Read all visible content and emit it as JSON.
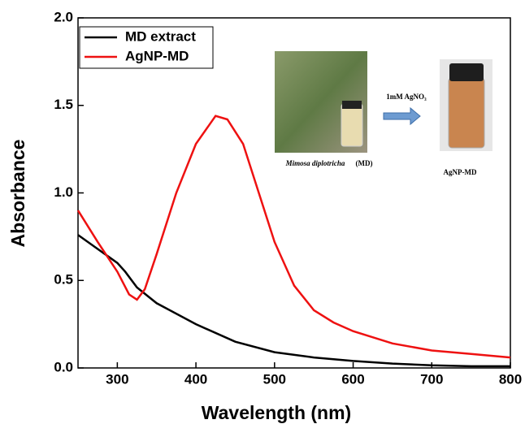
{
  "chart_data": {
    "type": "line",
    "xlabel": "Wavelength (nm)",
    "ylabel": "Absorbance",
    "xlim": [
      250,
      800
    ],
    "ylim": [
      0,
      2
    ],
    "xticks": [
      300,
      400,
      500,
      600,
      700,
      800
    ],
    "yticks": [
      {
        "value": 0,
        "label": "0.0"
      },
      {
        "value": 0.5,
        "label": "0.5"
      },
      {
        "value": 1,
        "label": "1.0"
      },
      {
        "value": 1.5,
        "label": "1.5"
      },
      {
        "value": 2,
        "label": "2.0"
      }
    ],
    "legend": "upper left",
    "series": [
      {
        "name": "MD extract",
        "color": "#000000",
        "x": [
          250,
          275,
          300,
          310,
          325,
          350,
          400,
          450,
          500,
          550,
          600,
          650,
          700,
          750,
          800
        ],
        "values": [
          0.76,
          0.68,
          0.6,
          0.55,
          0.46,
          0.37,
          0.25,
          0.15,
          0.09,
          0.06,
          0.04,
          0.025,
          0.015,
          0.01,
          0.01
        ]
      },
      {
        "name": "AgNP-MD",
        "color": "#ee1111",
        "x": [
          250,
          275,
          300,
          315,
          325,
          335,
          350,
          375,
          400,
          425,
          440,
          460,
          480,
          500,
          525,
          550,
          575,
          600,
          650,
          700,
          750,
          800
        ],
        "values": [
          0.9,
          0.72,
          0.55,
          0.42,
          0.39,
          0.45,
          0.65,
          1.0,
          1.28,
          1.44,
          1.42,
          1.28,
          1.0,
          0.72,
          0.47,
          0.33,
          0.26,
          0.21,
          0.14,
          0.1,
          0.08,
          0.06
        ]
      }
    ],
    "annotations": [
      "1mM AgNO₃",
      "Mimosa diplotricha",
      "(MD)",
      "AgNP-MD"
    ]
  }
}
